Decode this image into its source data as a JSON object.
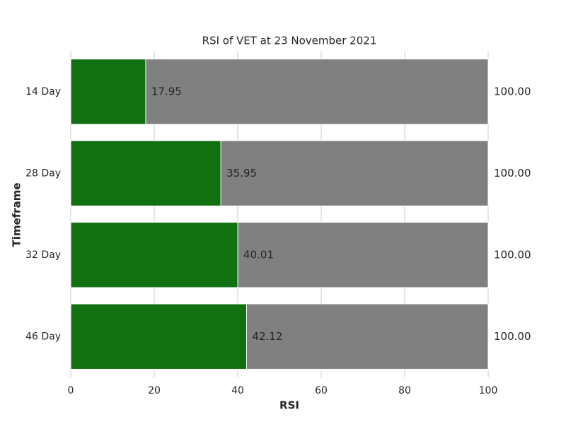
{
  "chart_data": {
    "type": "bar",
    "orientation": "horizontal",
    "barmode": "overlay",
    "title": "RSI of VET at 23 November 2021",
    "xlabel": "RSI",
    "ylabel": "Timeframe",
    "categories": [
      "14 Day",
      "28 Day",
      "32 Day",
      "46 Day"
    ],
    "series": [
      {
        "color": "#808080",
        "values": [
          100,
          100,
          100,
          100
        ],
        "value_labels": [
          "100.00",
          "100.00",
          "100.00",
          "100.00"
        ]
      },
      {
        "color": "#117011",
        "values": [
          17.95,
          35.95,
          40.01,
          42.12
        ]
      }
    ],
    "xlim": [
      0,
      100
    ],
    "xticks": [
      0,
      20,
      40,
      60,
      80,
      100
    ],
    "grid": true
  }
}
